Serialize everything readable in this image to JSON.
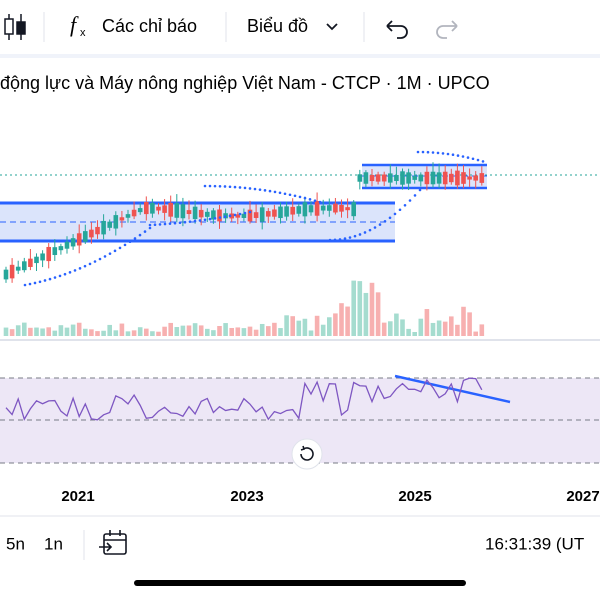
{
  "toolbar": {
    "indicators": "Các chỉ báo",
    "chart_type": "Biểu đồ"
  },
  "chart": {
    "title": "động lực và Máy nông nghiệp Việt Nam - CTCP · 1M · UPCO",
    "x_labels": [
      "2021",
      "2023",
      "2025",
      "2027"
    ]
  },
  "bottom_bar": {
    "ranges": [
      "5n",
      "1n"
    ],
    "clock": "16:31:39 (UT"
  }
}
